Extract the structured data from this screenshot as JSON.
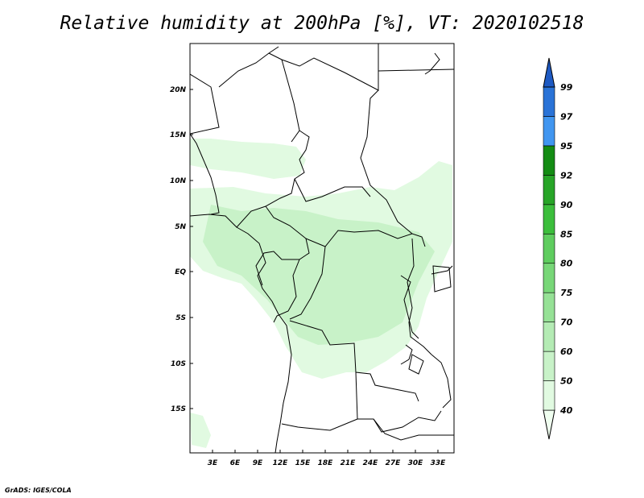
{
  "title": "Relative humidity at 200hPa [%], VT: 2020102518",
  "credit": "GrADS: IGES/COLA",
  "map": {
    "lat_labels": [
      "20N",
      "15N",
      "10N",
      "5N",
      "EQ",
      "5S",
      "10S",
      "15S"
    ],
    "lon_labels": [
      "3E",
      "6E",
      "9E",
      "12E",
      "15E",
      "18E",
      "21E",
      "24E",
      "27E",
      "30E",
      "33E"
    ]
  },
  "colorbar": {
    "labels": [
      "40",
      "50",
      "60",
      "70",
      "75",
      "80",
      "85",
      "90",
      "92",
      "95",
      "97",
      "99"
    ],
    "colors": [
      "#f0fff0",
      "#e1fae1",
      "#c8f2c8",
      "#b4ebb4",
      "#96e196",
      "#78d778",
      "#5fcd5f",
      "#3cbe3c",
      "#28a528",
      "#148c14",
      "#4196f0",
      "#2a73d7",
      "#1e5ac3"
    ]
  }
}
